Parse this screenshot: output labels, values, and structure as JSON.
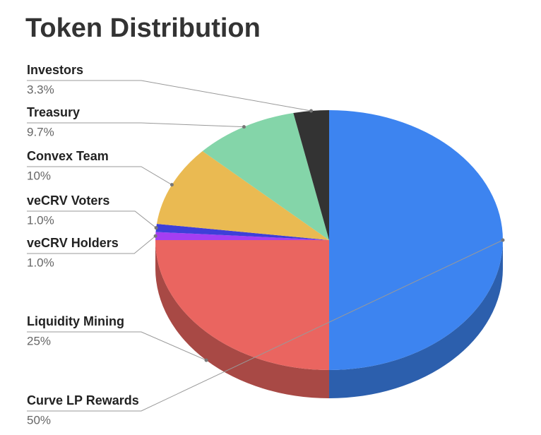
{
  "chart_data": {
    "type": "pie",
    "title": "Token Distribution",
    "categories": [
      "Curve LP Rewards",
      "Liquidity Mining",
      "veCRV Holders",
      "veCRV Voters",
      "Convex Team",
      "Treasury",
      "Investors"
    ],
    "values": [
      50,
      25,
      1,
      1,
      10,
      9.7,
      3.3
    ],
    "value_labels": [
      "50%",
      "25%",
      "1.0%",
      "1.0%",
      "10%",
      "9.7%",
      "3.3%"
    ],
    "colors": [
      "#3d84f0",
      "#ea6560",
      "#a43ef2",
      "#3e3fd8",
      "#eaba52",
      "#84d5a9",
      "#333333"
    ]
  }
}
